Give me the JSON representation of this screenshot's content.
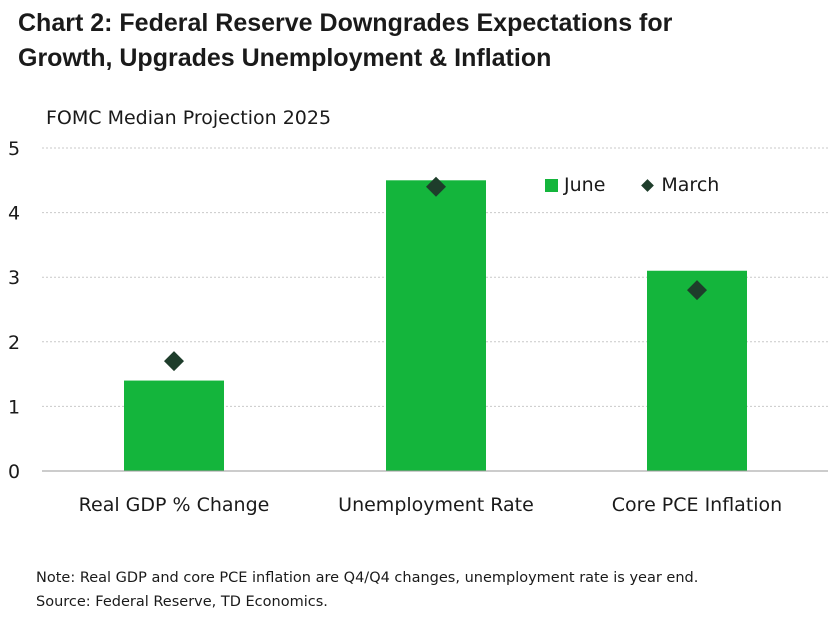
{
  "header": {
    "title_line1": "Chart 2: Federal Reserve Downgrades Expectations for",
    "title_line2": "Growth, Upgrades Unemployment & Inflation"
  },
  "chart_data": {
    "type": "bar",
    "title": "Chart 2: Federal Reserve Downgrades Expectations for Growth, Upgrades Unemployment & Inflation",
    "subtitle": "FOMC Median Projection 2025",
    "categories": [
      "Real GDP % Change",
      "Unemployment Rate",
      "Core PCE Inflation"
    ],
    "series": [
      {
        "name": "June",
        "kind": "bar",
        "color": "#14b53c",
        "values": [
          1.4,
          4.5,
          3.1
        ]
      },
      {
        "name": "March",
        "kind": "marker-diamond",
        "color": "#1e3d2b",
        "values": [
          1.7,
          4.4,
          2.8
        ]
      }
    ],
    "y_ticks": [
      "0",
      "1",
      "2",
      "3",
      "4",
      "5"
    ],
    "ylim": [
      0,
      5
    ],
    "xlabel": "",
    "ylabel": "",
    "grid": true,
    "legend_position": "top-right"
  },
  "notes": {
    "note": "Note: Real GDP and core PCE inflation are Q4/Q4 changes, unemployment rate is year end.",
    "source": "Source: Federal Reserve, TD Economics."
  }
}
